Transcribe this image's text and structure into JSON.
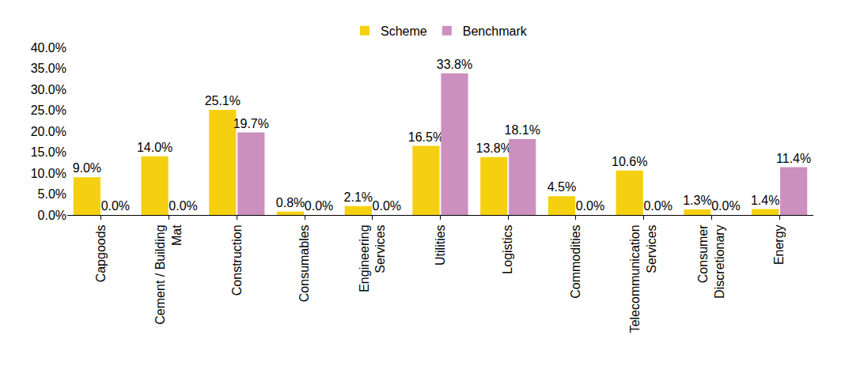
{
  "chart_data": {
    "type": "bar",
    "categories": [
      "Capgoods",
      "Cement / Building Mat",
      "Construction",
      "Consumables",
      "Engineering Services",
      "Utilities",
      "Logistics",
      "Commodities",
      "Telecommunication Services",
      "Consumer Discretionary",
      "Energy"
    ],
    "series": [
      {
        "name": "Scheme",
        "color": "#f5d010",
        "values": [
          9.0,
          14.0,
          25.1,
          0.8,
          2.1,
          16.5,
          13.8,
          4.5,
          10.6,
          1.3,
          1.4
        ],
        "value_labels": [
          "9.0%",
          "14.0%",
          "25.1%",
          "0.8%",
          "2.1%",
          "16.5%",
          "13.8%",
          "4.5%",
          "10.6%",
          "1.3%",
          "1.4%"
        ]
      },
      {
        "name": "Benchmark",
        "color": "#cc8fc0",
        "values": [
          0.0,
          0.0,
          19.7,
          0.0,
          0.0,
          33.8,
          18.1,
          0.0,
          0.0,
          0.0,
          11.4
        ],
        "value_labels": [
          "0.0%",
          "0.0%",
          "19.7%",
          "0.0%",
          "0.0%",
          "33.8%",
          "18.1%",
          "0.0%",
          "0.0%",
          "0.0%",
          "11.4%"
        ]
      }
    ],
    "ylim": [
      0,
      40
    ],
    "yticks": [
      {
        "value": 0,
        "label": "0.0%"
      },
      {
        "value": 5,
        "label": "5.0%"
      },
      {
        "value": 10,
        "label": "10.0%"
      },
      {
        "value": 15,
        "label": "15.0%"
      },
      {
        "value": 20,
        "label": "20.0%"
      },
      {
        "value": 25,
        "label": "25.0%"
      },
      {
        "value": 30,
        "label": "30.0%"
      },
      {
        "value": 35,
        "label": "35.0%"
      },
      {
        "value": 40,
        "label": "40.0%"
      }
    ],
    "grid": false,
    "legend": "top",
    "data_labels": true
  }
}
